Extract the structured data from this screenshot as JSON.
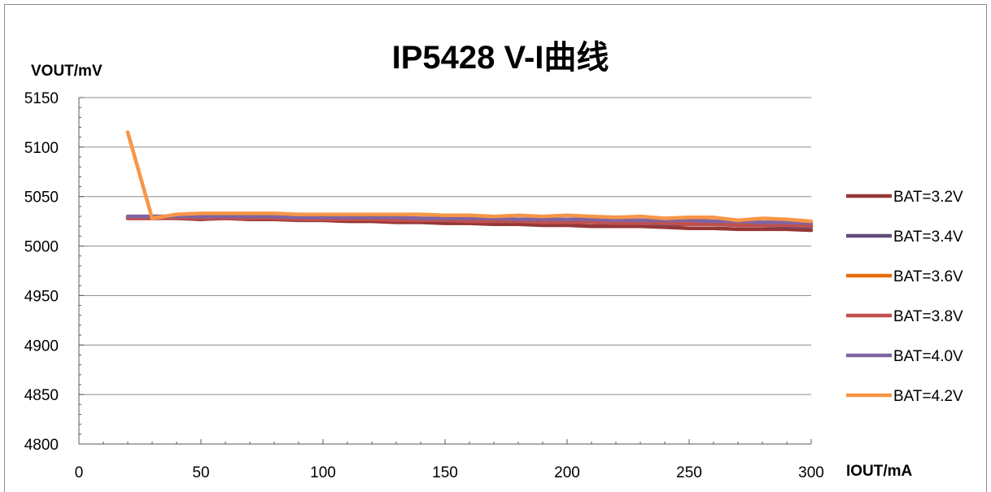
{
  "chart_data": {
    "type": "line",
    "title": "IP5428  V-I曲线",
    "xlabel": "IOUT/mA",
    "ylabel": "VOUT/mV",
    "xlim": [
      0,
      300
    ],
    "ylim": [
      4800,
      5150
    ],
    "xticks": [
      "0",
      "50",
      "100",
      "150",
      "200",
      "250",
      "300"
    ],
    "yticks": [
      "4800",
      "4850",
      "4900",
      "4950",
      "5000",
      "5050",
      "5100",
      "5150"
    ],
    "grid": "horizontal",
    "legend_position": "right",
    "x": [
      20,
      30,
      40,
      50,
      60,
      70,
      80,
      90,
      100,
      110,
      120,
      130,
      140,
      150,
      160,
      170,
      180,
      190,
      200,
      210,
      220,
      230,
      240,
      250,
      260,
      270,
      280,
      290,
      300
    ],
    "series": [
      {
        "name": "BAT=3.2V",
        "color": "#953735",
        "values": [
          5028,
          5029,
          5028,
          5027,
          5028,
          5027,
          5027,
          5026,
          5026,
          5025,
          5025,
          5024,
          5024,
          5023,
          5023,
          5022,
          5022,
          5021,
          5021,
          5020,
          5020,
          5020,
          5019,
          5018,
          5018,
          5017,
          5017,
          5017,
          5016
        ]
      },
      {
        "name": "BAT=3.4V",
        "color": "#604a7b",
        "values": [
          5030,
          5030,
          5030,
          5029,
          5029,
          5029,
          5029,
          5028,
          5028,
          5028,
          5027,
          5027,
          5027,
          5026,
          5026,
          5025,
          5025,
          5025,
          5024,
          5024,
          5023,
          5023,
          5022,
          5022,
          5022,
          5021,
          5021,
          5020,
          5019
        ]
      },
      {
        "name": "BAT=3.6V",
        "color": "#e46c0a",
        "values": [
          5028,
          5028,
          5029,
          5029,
          5029,
          5029,
          5029,
          5029,
          5028,
          5028,
          5028,
          5028,
          5028,
          5027,
          5027,
          5027,
          5026,
          5026,
          5026,
          5025,
          5025,
          5025,
          5024,
          5024,
          5023,
          5023,
          5022,
          5022,
          5021
        ]
      },
      {
        "name": "BAT=3.8V",
        "color": "#c0504d",
        "values": [
          5028,
          5028,
          5028,
          5028,
          5028,
          5028,
          5028,
          5027,
          5027,
          5027,
          5027,
          5026,
          5026,
          5026,
          5025,
          5025,
          5025,
          5024,
          5024,
          5024,
          5023,
          5023,
          5023,
          5022,
          5022,
          5021,
          5021,
          5021,
          5020
        ]
      },
      {
        "name": "BAT=4.0V",
        "color": "#8064a2",
        "values": [
          5030,
          5030,
          5030,
          5030,
          5030,
          5030,
          5030,
          5029,
          5029,
          5029,
          5029,
          5029,
          5028,
          5028,
          5028,
          5028,
          5027,
          5027,
          5027,
          5027,
          5026,
          5026,
          5026,
          5026,
          5025,
          5025,
          5024,
          5024,
          5023
        ]
      },
      {
        "name": "BAT=4.2V",
        "color": "#f79646",
        "values": [
          5115,
          5028,
          5032,
          5033,
          5033,
          5033,
          5033,
          5032,
          5032,
          5032,
          5032,
          5032,
          5032,
          5031,
          5031,
          5030,
          5031,
          5030,
          5031,
          5030,
          5029,
          5030,
          5028,
          5029,
          5029,
          5026,
          5028,
          5027,
          5025
        ]
      }
    ]
  }
}
